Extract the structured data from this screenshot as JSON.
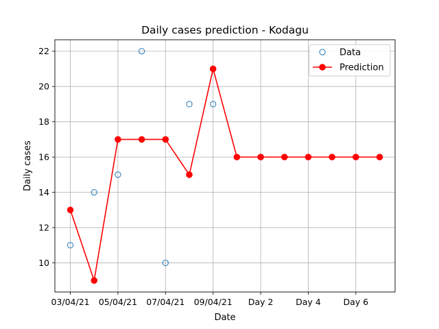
{
  "chart_data": {
    "type": "line",
    "title": "Daily cases prediction - Kodagu",
    "xlabel": "Date",
    "ylabel": "Daily cases",
    "x_index": [
      0,
      1,
      2,
      3,
      4,
      5,
      6,
      7,
      8,
      9,
      10,
      11,
      12,
      13
    ],
    "x_ticks": [
      {
        "x": 0,
        "label": "03/04/21"
      },
      {
        "x": 2,
        "label": "05/04/21"
      },
      {
        "x": 4,
        "label": "07/04/21"
      },
      {
        "x": 6,
        "label": "09/04/21"
      },
      {
        "x": 8,
        "label": "Day 2"
      },
      {
        "x": 10,
        "label": "Day 4"
      },
      {
        "x": 12,
        "label": "Day 6"
      }
    ],
    "xlim": [
      -0.65,
      13.65
    ],
    "ylim": [
      8.35,
      22.65
    ],
    "y_ticks": [
      10,
      12,
      14,
      16,
      18,
      20,
      22
    ],
    "grid": true,
    "legend_position": "top-right",
    "series": [
      {
        "name": "Data",
        "style": "markers",
        "color": "#1f77b4",
        "x": [
          0,
          1,
          2,
          3,
          4,
          5,
          6
        ],
        "values": [
          11,
          14,
          15,
          22,
          10,
          19,
          19
        ]
      },
      {
        "name": "Prediction",
        "style": "line-markers",
        "color": "#ff0000",
        "x": [
          0,
          1,
          2,
          3,
          4,
          5,
          6,
          7,
          8,
          9,
          10,
          11,
          12,
          13
        ],
        "values": [
          13,
          9,
          17,
          17,
          17,
          15,
          21,
          16,
          16,
          16,
          16,
          16,
          16,
          16
        ]
      }
    ]
  }
}
